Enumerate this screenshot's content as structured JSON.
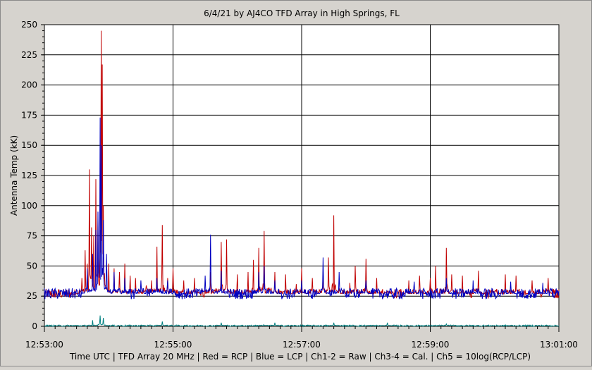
{
  "chart_data": {
    "type": "line",
    "title": "6/4/21  by  AJ4CO TFD Array  in  High Springs, FL",
    "ylabel": "Antenna Temp (kK)",
    "xlabel": "Time UTC | TFD Array 20 MHz | Red = RCP | Blue = LCP | Ch1-2 = Raw | Ch3-4 = Cal. | Ch5 = 10log(RCP/LCP)",
    "x_range": [
      "12:53:00",
      "13:01:00"
    ],
    "ylim": [
      0,
      250
    ],
    "y_ticks": [
      "0",
      "25",
      "50",
      "75",
      "100",
      "125",
      "150",
      "175",
      "200",
      "225",
      "250"
    ],
    "x_ticks": [
      "12:53:00",
      "12:55:00",
      "12:57:00",
      "12:59:00",
      "13:01:00"
    ],
    "grid": true,
    "series": [
      {
        "color": "#c00000",
        "baseline": 27,
        "spikes": [
          [
            "12:53:35",
            40
          ],
          [
            "12:53:38",
            63
          ],
          [
            "12:53:40",
            52
          ],
          [
            "12:53:42",
            130
          ],
          [
            "12:53:44",
            82
          ],
          [
            "12:53:46",
            75
          ],
          [
            "12:53:48",
            122
          ],
          [
            "12:53:50",
            89
          ],
          [
            "12:53:52",
            80
          ],
          [
            "12:53:53",
            245
          ],
          [
            "12:53:54",
            217
          ],
          [
            "12:53:55",
            100
          ],
          [
            "12:53:57",
            63
          ],
          [
            "12:54:00",
            52
          ],
          [
            "12:54:05",
            48
          ],
          [
            "12:54:10",
            45
          ],
          [
            "12:54:15",
            52
          ],
          [
            "12:54:20",
            42
          ],
          [
            "12:54:25",
            40
          ],
          [
            "12:54:35",
            54
          ],
          [
            "12:54:40",
            38
          ],
          [
            "12:54:45",
            66
          ],
          [
            "12:54:50",
            84
          ],
          [
            "12:54:55",
            40
          ],
          [
            "12:55:00",
            48
          ],
          [
            "12:55:10",
            38
          ],
          [
            "12:55:20",
            40
          ],
          [
            "12:55:35",
            45
          ],
          [
            "12:55:40",
            47
          ],
          [
            "12:55:45",
            70
          ],
          [
            "12:55:50",
            72
          ],
          [
            "12:56:00",
            43
          ],
          [
            "12:56:10",
            45
          ],
          [
            "12:56:15",
            55
          ],
          [
            "12:56:20",
            65
          ],
          [
            "12:56:25",
            79
          ],
          [
            "12:56:30",
            65
          ],
          [
            "12:56:35",
            45
          ],
          [
            "12:56:45",
            43
          ],
          [
            "12:56:55",
            35
          ],
          [
            "12:57:00",
            48
          ],
          [
            "12:57:10",
            40
          ],
          [
            "12:57:20",
            45
          ],
          [
            "12:57:25",
            57
          ],
          [
            "12:57:30",
            92
          ],
          [
            "12:57:35",
            40
          ],
          [
            "12:57:45",
            36
          ],
          [
            "12:57:50",
            50
          ],
          [
            "12:58:00",
            56
          ],
          [
            "12:58:10",
            40
          ],
          [
            "12:58:20",
            36
          ],
          [
            "12:58:40",
            38
          ],
          [
            "12:58:50",
            42
          ],
          [
            "12:59:00",
            40
          ],
          [
            "12:59:05",
            50
          ],
          [
            "12:59:15",
            65
          ],
          [
            "12:59:20",
            43
          ],
          [
            "12:59:30",
            42
          ],
          [
            "12:59:45",
            46
          ],
          [
            "13:00:00",
            44
          ],
          [
            "13:00:10",
            43
          ],
          [
            "13:00:20",
            42
          ],
          [
            "13:00:35",
            38
          ],
          [
            "13:00:50",
            40
          ]
        ]
      },
      {
        "color": "#0000c0",
        "baseline": 27,
        "spikes": [
          [
            "12:53:40",
            48
          ],
          [
            "12:53:45",
            60
          ],
          [
            "12:53:48",
            80
          ],
          [
            "12:53:50",
            95
          ],
          [
            "12:53:52",
            173
          ],
          [
            "12:53:53",
            150
          ],
          [
            "12:53:55",
            88
          ],
          [
            "12:53:58",
            60
          ],
          [
            "12:54:05",
            45
          ],
          [
            "12:54:15",
            40
          ],
          [
            "12:54:30",
            38
          ],
          [
            "12:54:45",
            40
          ],
          [
            "12:54:55",
            38
          ],
          [
            "12:55:30",
            42
          ],
          [
            "12:55:35",
            76
          ],
          [
            "12:55:45",
            46
          ],
          [
            "12:56:20",
            45
          ],
          [
            "12:56:25",
            50
          ],
          [
            "12:56:35",
            38
          ],
          [
            "12:57:00",
            38
          ],
          [
            "12:57:20",
            57
          ],
          [
            "12:57:35",
            45
          ],
          [
            "12:58:00",
            38
          ],
          [
            "12:58:45",
            37
          ],
          [
            "12:59:15",
            40
          ],
          [
            "12:59:40",
            38
          ],
          [
            "13:00:15",
            37
          ],
          [
            "13:00:45",
            36
          ]
        ]
      },
      {
        "color": "#008080",
        "baseline": 0.5,
        "spikes": [
          [
            "12:53:45",
            5
          ],
          [
            "12:53:52",
            9
          ],
          [
            "12:53:55",
            7
          ],
          [
            "12:54:50",
            4
          ],
          [
            "12:55:45",
            3
          ],
          [
            "12:56:25",
            4
          ],
          [
            "12:56:35",
            3
          ],
          [
            "12:57:30",
            3
          ],
          [
            "12:58:20",
            3
          ],
          [
            "12:59:15",
            2
          ]
        ]
      }
    ]
  }
}
